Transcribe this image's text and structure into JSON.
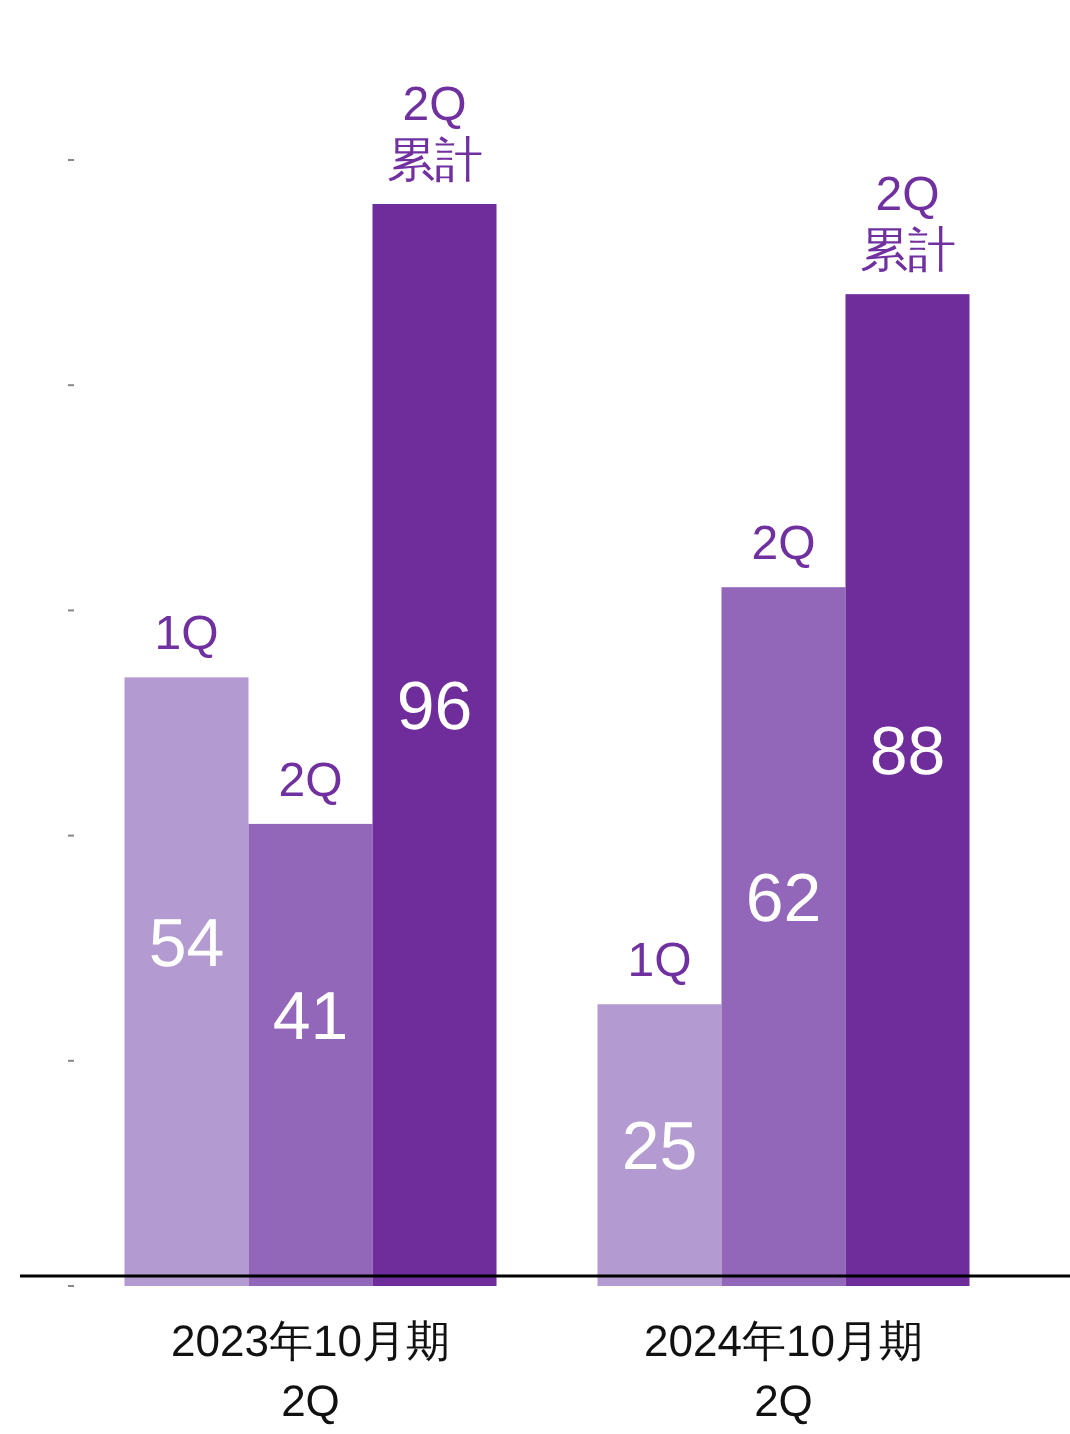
{
  "chart_data": {
    "type": "bar",
    "categories": [
      "2023年10月期\n2Q",
      "2024年10月期\n2Q"
    ],
    "series": [
      {
        "name": "1Q",
        "color": "#b39ad0",
        "values": [
          54,
          25
        ]
      },
      {
        "name": "2Q",
        "color": "#9266b8",
        "values": [
          41,
          62
        ]
      },
      {
        "name": "2Q\n累計",
        "color": "#6f2d9b",
        "values": [
          96,
          88
        ]
      }
    ],
    "data_labels": true,
    "legend": false,
    "grid": false
  }
}
